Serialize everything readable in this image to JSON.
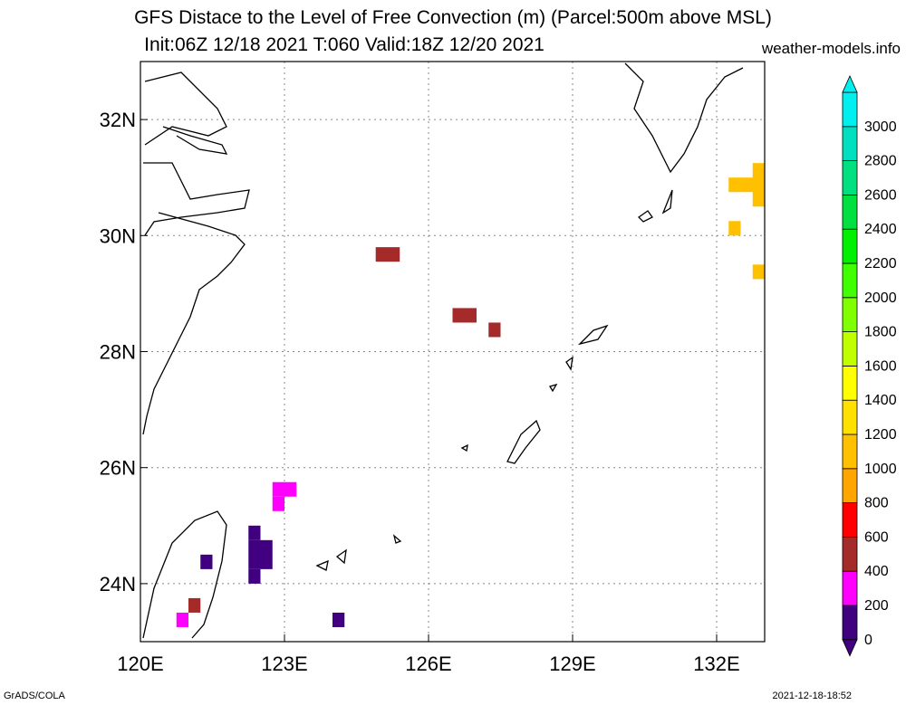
{
  "title": "GFS Distace to the Level of Free Convection (m) (Parcel:500m above MSL)",
  "subtitle": "Init:06Z 12/18 2021 T:060 Valid:18Z 12/20 2021",
  "site": "weather-models.info",
  "footer_left": "GrADS/COLA",
  "footer_right": "2021-12-18-18:52",
  "map": {
    "lon_range": [
      120,
      133
    ],
    "lat_range": [
      23,
      33
    ],
    "x_ticks": [
      {
        "v": 120,
        "label": "120E"
      },
      {
        "v": 123,
        "label": "123E"
      },
      {
        "v": 126,
        "label": "126E"
      },
      {
        "v": 129,
        "label": "129E"
      },
      {
        "v": 132,
        "label": "132E"
      }
    ],
    "y_ticks": [
      {
        "v": 24,
        "label": "24N"
      },
      {
        "v": 26,
        "label": "26N"
      },
      {
        "v": 28,
        "label": "28N"
      },
      {
        "v": 30,
        "label": "30N"
      },
      {
        "v": 32,
        "label": "32N"
      }
    ]
  },
  "colorbar": {
    "labels": [
      "0",
      "200",
      "400",
      "600",
      "800",
      "1000",
      "1200",
      "1400",
      "1600",
      "1800",
      "2000",
      "2200",
      "2400",
      "2600",
      "2800",
      "3000"
    ],
    "colors": [
      "#400080",
      "#ff00ff",
      "#a52a2a",
      "#ff0000",
      "#ffa500",
      "#ffc000",
      "#ffe000",
      "#ffff00",
      "#c0ff00",
      "#80ff00",
      "#40ff00",
      "#00f000",
      "#00e040",
      "#00e080",
      "#00e0c0",
      "#00f0f0"
    ]
  },
  "cells": [
    {
      "lon": 124.9,
      "lat": 29.55,
      "w": 0.5,
      "h": 0.25,
      "c": "#a52a2a"
    },
    {
      "lon": 126.5,
      "lat": 28.5,
      "w": 0.5,
      "h": 0.25,
      "c": "#a52a2a"
    },
    {
      "lon": 127.25,
      "lat": 28.25,
      "w": 0.25,
      "h": 0.25,
      "c": "#a52a2a"
    },
    {
      "lon": 122.75,
      "lat": 25.5,
      "w": 0.5,
      "h": 0.25,
      "c": "#ff00ff"
    },
    {
      "lon": 122.75,
      "lat": 25.25,
      "w": 0.25,
      "h": 0.25,
      "c": "#ff00ff"
    },
    {
      "lon": 122.25,
      "lat": 24.75,
      "w": 0.25,
      "h": 0.25,
      "c": "#400080"
    },
    {
      "lon": 122.25,
      "lat": 24.25,
      "w": 0.5,
      "h": 0.5,
      "c": "#400080"
    },
    {
      "lon": 122.25,
      "lat": 24.0,
      "w": 0.25,
      "h": 0.25,
      "c": "#400080"
    },
    {
      "lon": 121.25,
      "lat": 24.25,
      "w": 0.25,
      "h": 0.25,
      "c": "#400080"
    },
    {
      "lon": 121.0,
      "lat": 23.5,
      "w": 0.25,
      "h": 0.25,
      "c": "#a52a2a"
    },
    {
      "lon": 120.75,
      "lat": 23.25,
      "w": 0.25,
      "h": 0.25,
      "c": "#ff00ff"
    },
    {
      "lon": 124.0,
      "lat": 23.25,
      "w": 0.25,
      "h": 0.25,
      "c": "#400080"
    },
    {
      "lon": 132.25,
      "lat": 30.75,
      "w": 0.75,
      "h": 0.25,
      "c": "#ffc000"
    },
    {
      "lon": 132.75,
      "lat": 30.5,
      "w": 0.25,
      "h": 0.75,
      "c": "#ffc000"
    },
    {
      "lon": 132.25,
      "lat": 30.0,
      "w": 0.25,
      "h": 0.25,
      "c": "#ffc000"
    },
    {
      "lon": 132.75,
      "lat": 29.25,
      "w": 0.25,
      "h": 0.25,
      "c": "#ffc000"
    }
  ]
}
